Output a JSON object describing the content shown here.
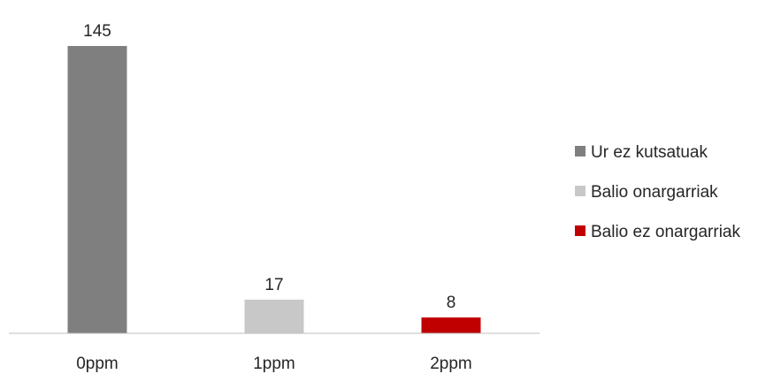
{
  "chart_data": {
    "type": "bar",
    "title": "",
    "xlabel": "",
    "ylabel": "",
    "categories": [
      "0ppm",
      "1ppm",
      "2ppm"
    ],
    "ylim": [
      0,
      145
    ],
    "grid": false,
    "legend_position": "right",
    "series": [
      {
        "name": "Ur ez kutsatuak",
        "color": "#7f7f7f",
        "values": [
          145,
          null,
          null
        ]
      },
      {
        "name": "Balio onargarriak",
        "color": "#c8c8c8",
        "values": [
          null,
          17,
          null
        ]
      },
      {
        "name": "Balio ez onargarriak",
        "color": "#c00000",
        "values": [
          null,
          null,
          8
        ]
      }
    ]
  }
}
